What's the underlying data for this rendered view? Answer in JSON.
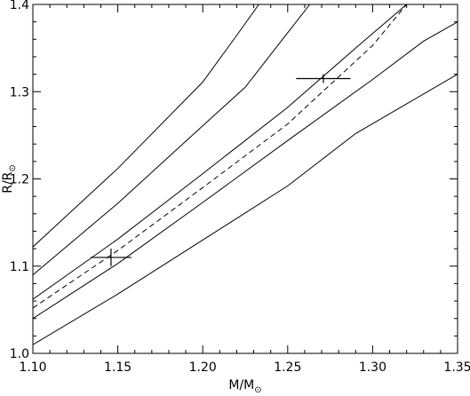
{
  "chart_data": {
    "type": "line",
    "title": "",
    "xlabel_main": "M/M",
    "xlabel_sub": "⊙",
    "ylabel_main": "R/R",
    "ylabel_sub": "⊙",
    "xlim": [
      1.1,
      1.35
    ],
    "ylim": [
      1.0,
      1.4
    ],
    "xticks": [
      1.1,
      1.15,
      1.2,
      1.25,
      1.3,
      1.35
    ],
    "xtick_labels": [
      "1.10",
      "1.15",
      "1.20",
      "1.25",
      "1.30",
      "1.35"
    ],
    "yticks": [
      1.0,
      1.1,
      1.2,
      1.3,
      1.4
    ],
    "ytick_labels": [
      "1.0",
      "1.1",
      "1.2",
      "1.3",
      "1.4"
    ],
    "grid": false,
    "series": [
      {
        "style": "solid",
        "points": [
          [
            1.1,
            1.122
          ],
          [
            1.15,
            1.212
          ],
          [
            1.2,
            1.311
          ],
          [
            1.222,
            1.37
          ],
          [
            1.233,
            1.4
          ]
        ]
      },
      {
        "style": "solid",
        "points": [
          [
            1.1,
            1.09
          ],
          [
            1.15,
            1.172
          ],
          [
            1.2,
            1.261
          ],
          [
            1.225,
            1.305
          ],
          [
            1.245,
            1.355
          ],
          [
            1.263,
            1.4
          ]
        ]
      },
      {
        "style": "solid",
        "points": [
          [
            1.1,
            1.062
          ],
          [
            1.15,
            1.131
          ],
          [
            1.2,
            1.206
          ],
          [
            1.25,
            1.282
          ],
          [
            1.29,
            1.35
          ],
          [
            1.32,
            1.4
          ]
        ]
      },
      {
        "style": "dashed",
        "points": [
          [
            1.1,
            1.052
          ],
          [
            1.15,
            1.118
          ],
          [
            1.2,
            1.19
          ],
          [
            1.25,
            1.263
          ],
          [
            1.3,
            1.353
          ],
          [
            1.32,
            1.4
          ]
        ]
      },
      {
        "style": "solid",
        "points": [
          [
            1.1,
            1.04
          ],
          [
            1.15,
            1.103
          ],
          [
            1.2,
            1.173
          ],
          [
            1.25,
            1.244
          ],
          [
            1.3,
            1.314
          ],
          [
            1.33,
            1.358
          ],
          [
            1.35,
            1.38
          ]
        ]
      },
      {
        "style": "solid",
        "points": [
          [
            1.1,
            1.01
          ],
          [
            1.15,
            1.068
          ],
          [
            1.2,
            1.13
          ],
          [
            1.25,
            1.192
          ],
          [
            1.29,
            1.252
          ],
          [
            1.35,
            1.32
          ]
        ]
      }
    ],
    "points_with_errors": [
      {
        "x": 1.146,
        "y": 1.11,
        "xerr": 0.012,
        "yerr": 0.01
      },
      {
        "x": 1.271,
        "y": 1.315,
        "xerr": 0.016,
        "yerr": 0.005
      }
    ]
  }
}
